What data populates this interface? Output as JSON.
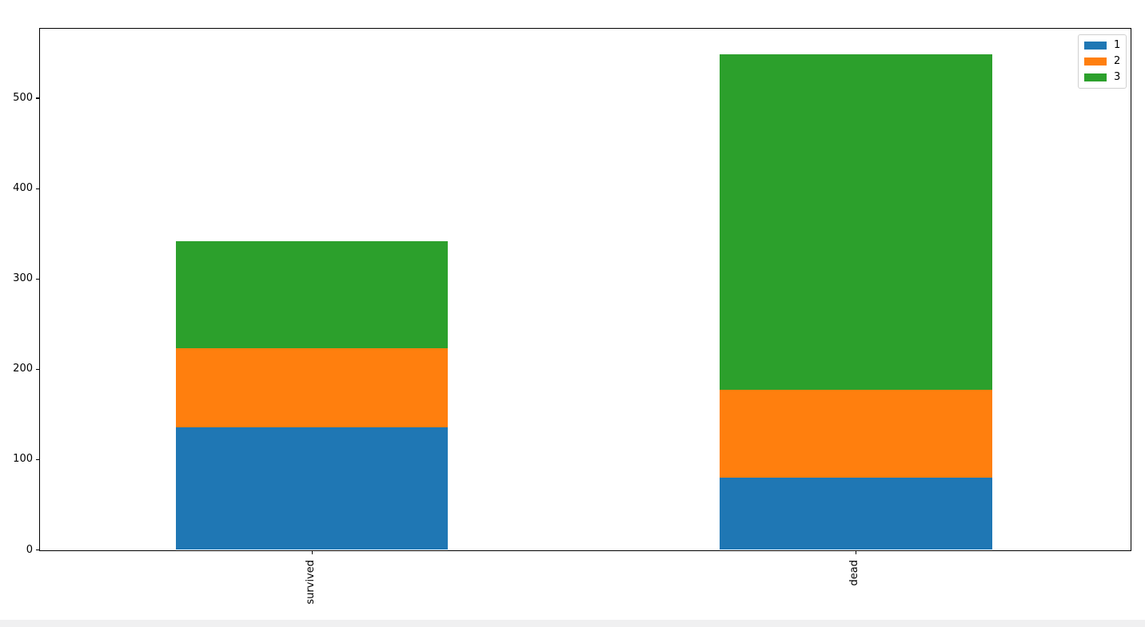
{
  "figure": {
    "background": "#ffffff"
  },
  "bottom_strip": {
    "color": "#f0f0f1"
  },
  "chart_data": {
    "type": "bar",
    "stacked": true,
    "orientation": "vertical",
    "title": "",
    "xlabel": "",
    "ylabel": "",
    "categories": [
      "survived",
      "dead"
    ],
    "series": [
      {
        "name": "1",
        "color": "#1f77b4",
        "values": [
          136,
          80
        ]
      },
      {
        "name": "2",
        "color": "#ff7f0e",
        "values": [
          87,
          97
        ]
      },
      {
        "name": "3",
        "color": "#2ca02c",
        "values": [
          119,
          372
        ]
      }
    ],
    "totals": [
      342,
      549
    ],
    "yticks": [
      0,
      100,
      200,
      300,
      400,
      500
    ],
    "ytick_labels": [
      "0",
      "100",
      "200",
      "300",
      "400",
      "500"
    ],
    "ylim": [
      0,
      577
    ],
    "xlim": [
      -0.5,
      1.505
    ],
    "bar_width": 0.5,
    "xtick_rotation": 90,
    "grid": false,
    "legend": {
      "position": "upper right",
      "labels": [
        "1",
        "2",
        "3"
      ]
    },
    "axis_color": "#000000",
    "tick_label_color": "#000000"
  }
}
